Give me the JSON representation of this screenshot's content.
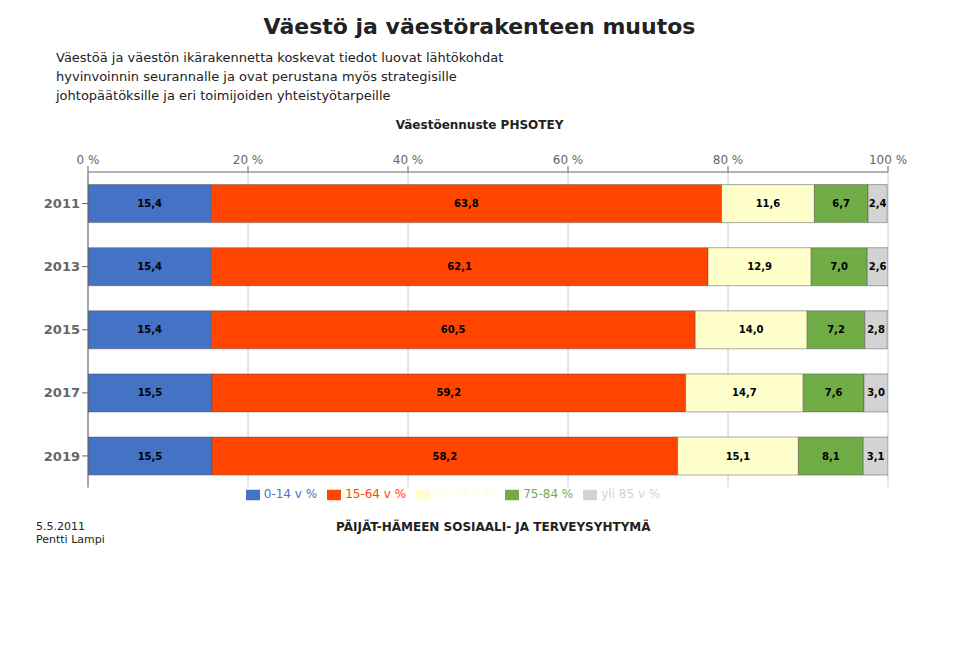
{
  "title": "Väestö ja väestörakenteen muutos",
  "subtitle": "Väestöä ja väestön ikärakennetta koskevat tiedot luovat lähtökohdat\nhyvinvoinnin seurannalle ja ovat perustana myös strategisille\njohtopäätöksille ja eri toimijoiden yhteistyötarpeille",
  "annotations": [
    "5.5.2011\nPentti Lampi",
    "PÄIJÄT-HÄMEEN SOSIAALI- JA TERVEYSYHTYMÄ"
  ],
  "chart_data": {
    "type": "bar",
    "orientation": "horizontal",
    "stacked": true,
    "title": "Väestöennuste PHSOTEY",
    "categories": [
      "2011",
      "2013",
      "2015",
      "2017",
      "2019"
    ],
    "series": [
      {
        "name": "0-14 v %",
        "color": "#4472C4",
        "values": [
          15.4,
          15.4,
          15.4,
          15.5,
          15.5
        ],
        "value_labels": [
          "15,4",
          "15,4",
          "15,4",
          "15,5",
          "15,5"
        ]
      },
      {
        "name": "15-64 v %",
        "color": "#FF4500",
        "values": [
          63.8,
          62.1,
          60.5,
          59.2,
          58.2
        ],
        "value_labels": [
          "63,8",
          "62,1",
          "60,5",
          "59,2",
          "58,2"
        ]
      },
      {
        "name": "65-74 v %",
        "color": "#FFFFCC",
        "values": [
          11.6,
          12.9,
          14.0,
          14.7,
          15.1
        ],
        "value_labels": [
          "11,6",
          "12,9",
          "14,0",
          "14,7",
          "15,1"
        ]
      },
      {
        "name": "75-84 %",
        "color": "#70AD47",
        "values": [
          6.7,
          7.0,
          7.2,
          7.6,
          8.1
        ],
        "value_labels": [
          "6,7",
          "7,0",
          "7,2",
          "7,6",
          "8,1"
        ]
      },
      {
        "name": "yli 85 v %",
        "color": "#D3D3D3",
        "values": [
          2.4,
          2.6,
          2.8,
          3.0,
          3.1
        ],
        "value_labels": [
          "2,4",
          "2,6",
          "2,8",
          "3,0",
          "3,1"
        ]
      }
    ],
    "xlim": [
      0,
      100
    ],
    "xticks": [
      {
        "value": 0,
        "label": "0 %"
      },
      {
        "value": 20,
        "label": "20 %"
      },
      {
        "value": 40,
        "label": "40 %"
      },
      {
        "value": 60,
        "label": "60 %"
      },
      {
        "value": 80,
        "label": "80 %"
      },
      {
        "value": 100,
        "label": "100 %"
      }
    ],
    "grid": true,
    "data_labels": true,
    "legend": "bottom"
  }
}
